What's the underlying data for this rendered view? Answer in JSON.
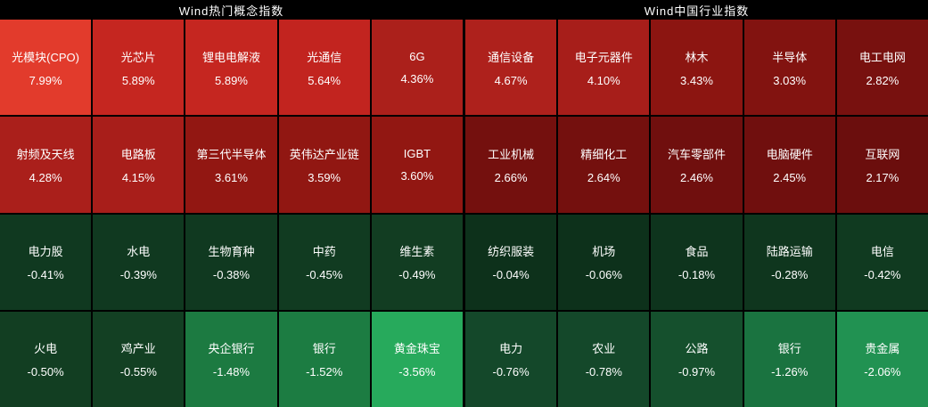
{
  "chart_data": [
    {
      "type": "heatmap",
      "title": "Wind热门概念指数",
      "rows": 4,
      "cols": 5,
      "value_unit": "%",
      "legend": "red = positive change, green = negative change; brightness scales with magnitude",
      "cells": [
        {
          "name": "光模块(CPO)",
          "value": 7.99,
          "label": "7.99%",
          "color": "#e23b2c"
        },
        {
          "name": "光芯片",
          "value": 5.89,
          "label": "5.89%",
          "color": "#c52620"
        },
        {
          "name": "锂电电解液",
          "value": 5.89,
          "label": "5.89%",
          "color": "#c52620"
        },
        {
          "name": "光通信",
          "value": 5.64,
          "label": "5.64%",
          "color": "#c2241f"
        },
        {
          "name": "6G",
          "value": 4.36,
          "label": "4.36%",
          "color": "#ab201b"
        },
        {
          "name": "射频及天线",
          "value": 4.28,
          "label": "4.28%",
          "color": "#aa1f1b"
        },
        {
          "name": "电路板",
          "value": 4.15,
          "label": "4.15%",
          "color": "#a81e1a"
        },
        {
          "name": "第三代半导体",
          "value": 3.61,
          "label": "3.61%",
          "color": "#921712"
        },
        {
          "name": "英伟达产业链",
          "value": 3.59,
          "label": "3.59%",
          "color": "#911712"
        },
        {
          "name": "IGBT",
          "value": 3.6,
          "label": "3.60%",
          "color": "#921712"
        },
        {
          "name": "电力股",
          "value": -0.41,
          "label": "-0.41%",
          "color": "#103920"
        },
        {
          "name": "水电",
          "value": -0.39,
          "label": "-0.39%",
          "color": "#103920"
        },
        {
          "name": "生物育种",
          "value": -0.38,
          "label": "-0.38%",
          "color": "#103920"
        },
        {
          "name": "中药",
          "value": -0.45,
          "label": "-0.45%",
          "color": "#113b21"
        },
        {
          "name": "维生素",
          "value": -0.49,
          "label": "-0.49%",
          "color": "#123d22"
        },
        {
          "name": "火电",
          "value": -0.5,
          "label": "-0.50%",
          "color": "#123e22"
        },
        {
          "name": "鸡产业",
          "value": -0.55,
          "label": "-0.55%",
          "color": "#134023"
        },
        {
          "name": "央企银行",
          "value": -1.48,
          "label": "-1.48%",
          "color": "#1c7a41"
        },
        {
          "name": "银行",
          "value": -1.52,
          "label": "-1.52%",
          "color": "#1c7c42"
        },
        {
          "name": "黄金珠宝",
          "value": -3.56,
          "label": "-3.56%",
          "color": "#27aa5c"
        }
      ]
    },
    {
      "type": "heatmap",
      "title": "Wind中国行业指数",
      "rows": 4,
      "cols": 5,
      "value_unit": "%",
      "legend": "red = positive change, green = negative change; brightness scales with magnitude",
      "cells": [
        {
          "name": "通信设备",
          "value": 4.67,
          "label": "4.67%",
          "color": "#ae211c"
        },
        {
          "name": "电子元器件",
          "value": 4.1,
          "label": "4.10%",
          "color": "#a71e1a"
        },
        {
          "name": "林木",
          "value": 3.43,
          "label": "3.43%",
          "color": "#8c1511"
        },
        {
          "name": "半导体",
          "value": 3.03,
          "label": "3.03%",
          "color": "#821310"
        },
        {
          "name": "电工电网",
          "value": 2.82,
          "label": "2.82%",
          "color": "#78110f"
        },
        {
          "name": "工业机械",
          "value": 2.66,
          "label": "2.66%",
          "color": "#74100e"
        },
        {
          "name": "精细化工",
          "value": 2.64,
          "label": "2.64%",
          "color": "#74100e"
        },
        {
          "name": "汽车零部件",
          "value": 2.46,
          "label": "2.46%",
          "color": "#700f0e"
        },
        {
          "name": "电脑硬件",
          "value": 2.45,
          "label": "2.45%",
          "color": "#700f0e"
        },
        {
          "name": "互联网",
          "value": 2.17,
          "label": "2.17%",
          "color": "#6b0e0d"
        },
        {
          "name": "纺织服装",
          "value": -0.04,
          "label": "-0.04%",
          "color": "#0d311b"
        },
        {
          "name": "机场",
          "value": -0.06,
          "label": "-0.06%",
          "color": "#0d311b"
        },
        {
          "name": "食品",
          "value": -0.18,
          "label": "-0.18%",
          "color": "#0e341d"
        },
        {
          "name": "陆路运输",
          "value": -0.28,
          "label": "-0.28%",
          "color": "#0f361e"
        },
        {
          "name": "电信",
          "value": -0.42,
          "label": "-0.42%",
          "color": "#103a20"
        },
        {
          "name": "电力",
          "value": -0.76,
          "label": "-0.76%",
          "color": "#14482a"
        },
        {
          "name": "农业",
          "value": -0.78,
          "label": "-0.78%",
          "color": "#14482a"
        },
        {
          "name": "公路",
          "value": -0.97,
          "label": "-0.97%",
          "color": "#15502d"
        },
        {
          "name": "银行",
          "value": -1.26,
          "label": "-1.26%",
          "color": "#1a7340"
        },
        {
          "name": "贵金属",
          "value": -2.06,
          "label": "-2.06%",
          "color": "#219252"
        }
      ]
    }
  ]
}
